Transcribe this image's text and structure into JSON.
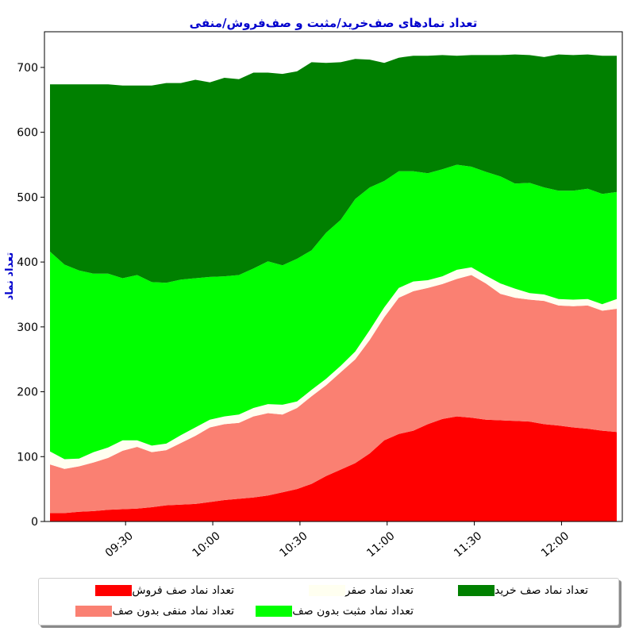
{
  "chart_data": {
    "type": "area",
    "stacked": true,
    "title": "تعداد نمادهای صف‌خرید/مثبت و صف‌فروش/منفی",
    "xlabel": "",
    "ylabel": "تعداد نماد",
    "x_ticks": [
      "09:30",
      "10:00",
      "10:30",
      "11:00",
      "11:30",
      "12:00"
    ],
    "x": [
      "09:04",
      "09:09",
      "09:14",
      "09:19",
      "09:24",
      "09:29",
      "09:34",
      "09:39",
      "09:44",
      "09:49",
      "09:54",
      "09:59",
      "10:04",
      "10:09",
      "10:14",
      "10:19",
      "10:24",
      "10:29",
      "10:34",
      "10:39",
      "10:44",
      "10:49",
      "10:54",
      "10:59",
      "11:04",
      "11:09",
      "11:14",
      "11:19",
      "11:24",
      "11:29",
      "11:34",
      "11:39",
      "11:44",
      "11:49",
      "11:54",
      "11:59",
      "12:04",
      "12:09",
      "12:14",
      "12:19"
    ],
    "xlim": [
      "09:04",
      "12:19"
    ],
    "y_ticks": [
      0,
      100,
      200,
      300,
      400,
      500,
      600,
      700
    ],
    "ylim": [
      0,
      755
    ],
    "grid": false,
    "legend_position": "bottom",
    "series": [
      {
        "name": "تعداد نماد صف فروش",
        "color": "#ff0000",
        "values": [
          13,
          13,
          15,
          16,
          18,
          19,
          20,
          22,
          25,
          26,
          27,
          30,
          33,
          35,
          37,
          40,
          45,
          50,
          58,
          70,
          80,
          90,
          105,
          125,
          135,
          140,
          150,
          158,
          162,
          160,
          157,
          156,
          155,
          154,
          150,
          148,
          145,
          143,
          140,
          138
        ]
      },
      {
        "name": "تعداد نماد منفی بدون صف",
        "color": "#fa8072",
        "values": [
          75,
          68,
          70,
          75,
          80,
          90,
          95,
          85,
          85,
          95,
          105,
          115,
          117,
          117,
          125,
          127,
          120,
          125,
          135,
          140,
          150,
          160,
          175,
          190,
          210,
          215,
          210,
          208,
          212,
          220,
          210,
          195,
          190,
          188,
          190,
          185,
          187,
          190,
          185,
          190
        ]
      },
      {
        "name": "تعداد نماد صفر",
        "color": "#fffff0",
        "values": [
          20,
          15,
          12,
          16,
          16,
          16,
          10,
          10,
          10,
          12,
          13,
          12,
          12,
          13,
          13,
          14,
          15,
          10,
          10,
          10,
          10,
          12,
          15,
          15,
          15,
          15,
          12,
          12,
          14,
          12,
          12,
          16,
          14,
          10,
          10,
          10,
          10,
          10,
          10,
          15
        ]
      },
      {
        "name": "تعداد نماد مثبت بدون صف",
        "color": "#00ff00",
        "values": [
          308,
          300,
          290,
          275,
          268,
          250,
          255,
          252,
          248,
          240,
          230,
          220,
          216,
          215,
          215,
          220,
          215,
          220,
          215,
          225,
          225,
          235,
          220,
          195,
          180,
          170,
          165,
          165,
          162,
          155,
          160,
          165,
          162,
          170,
          165,
          167,
          168,
          170,
          170,
          165
        ]
      },
      {
        "name": "تعداد نماد صف خرید",
        "color": "#008000",
        "values": [
          258,
          278,
          287,
          292,
          292,
          297,
          292,
          303,
          308,
          303,
          306,
          300,
          306,
          302,
          302,
          291,
          295,
          289,
          290,
          262,
          243,
          216,
          197,
          182,
          175,
          178,
          181,
          176,
          168,
          172,
          180,
          187,
          199,
          197,
          201,
          210,
          209,
          207,
          213,
          210
        ]
      }
    ]
  }
}
